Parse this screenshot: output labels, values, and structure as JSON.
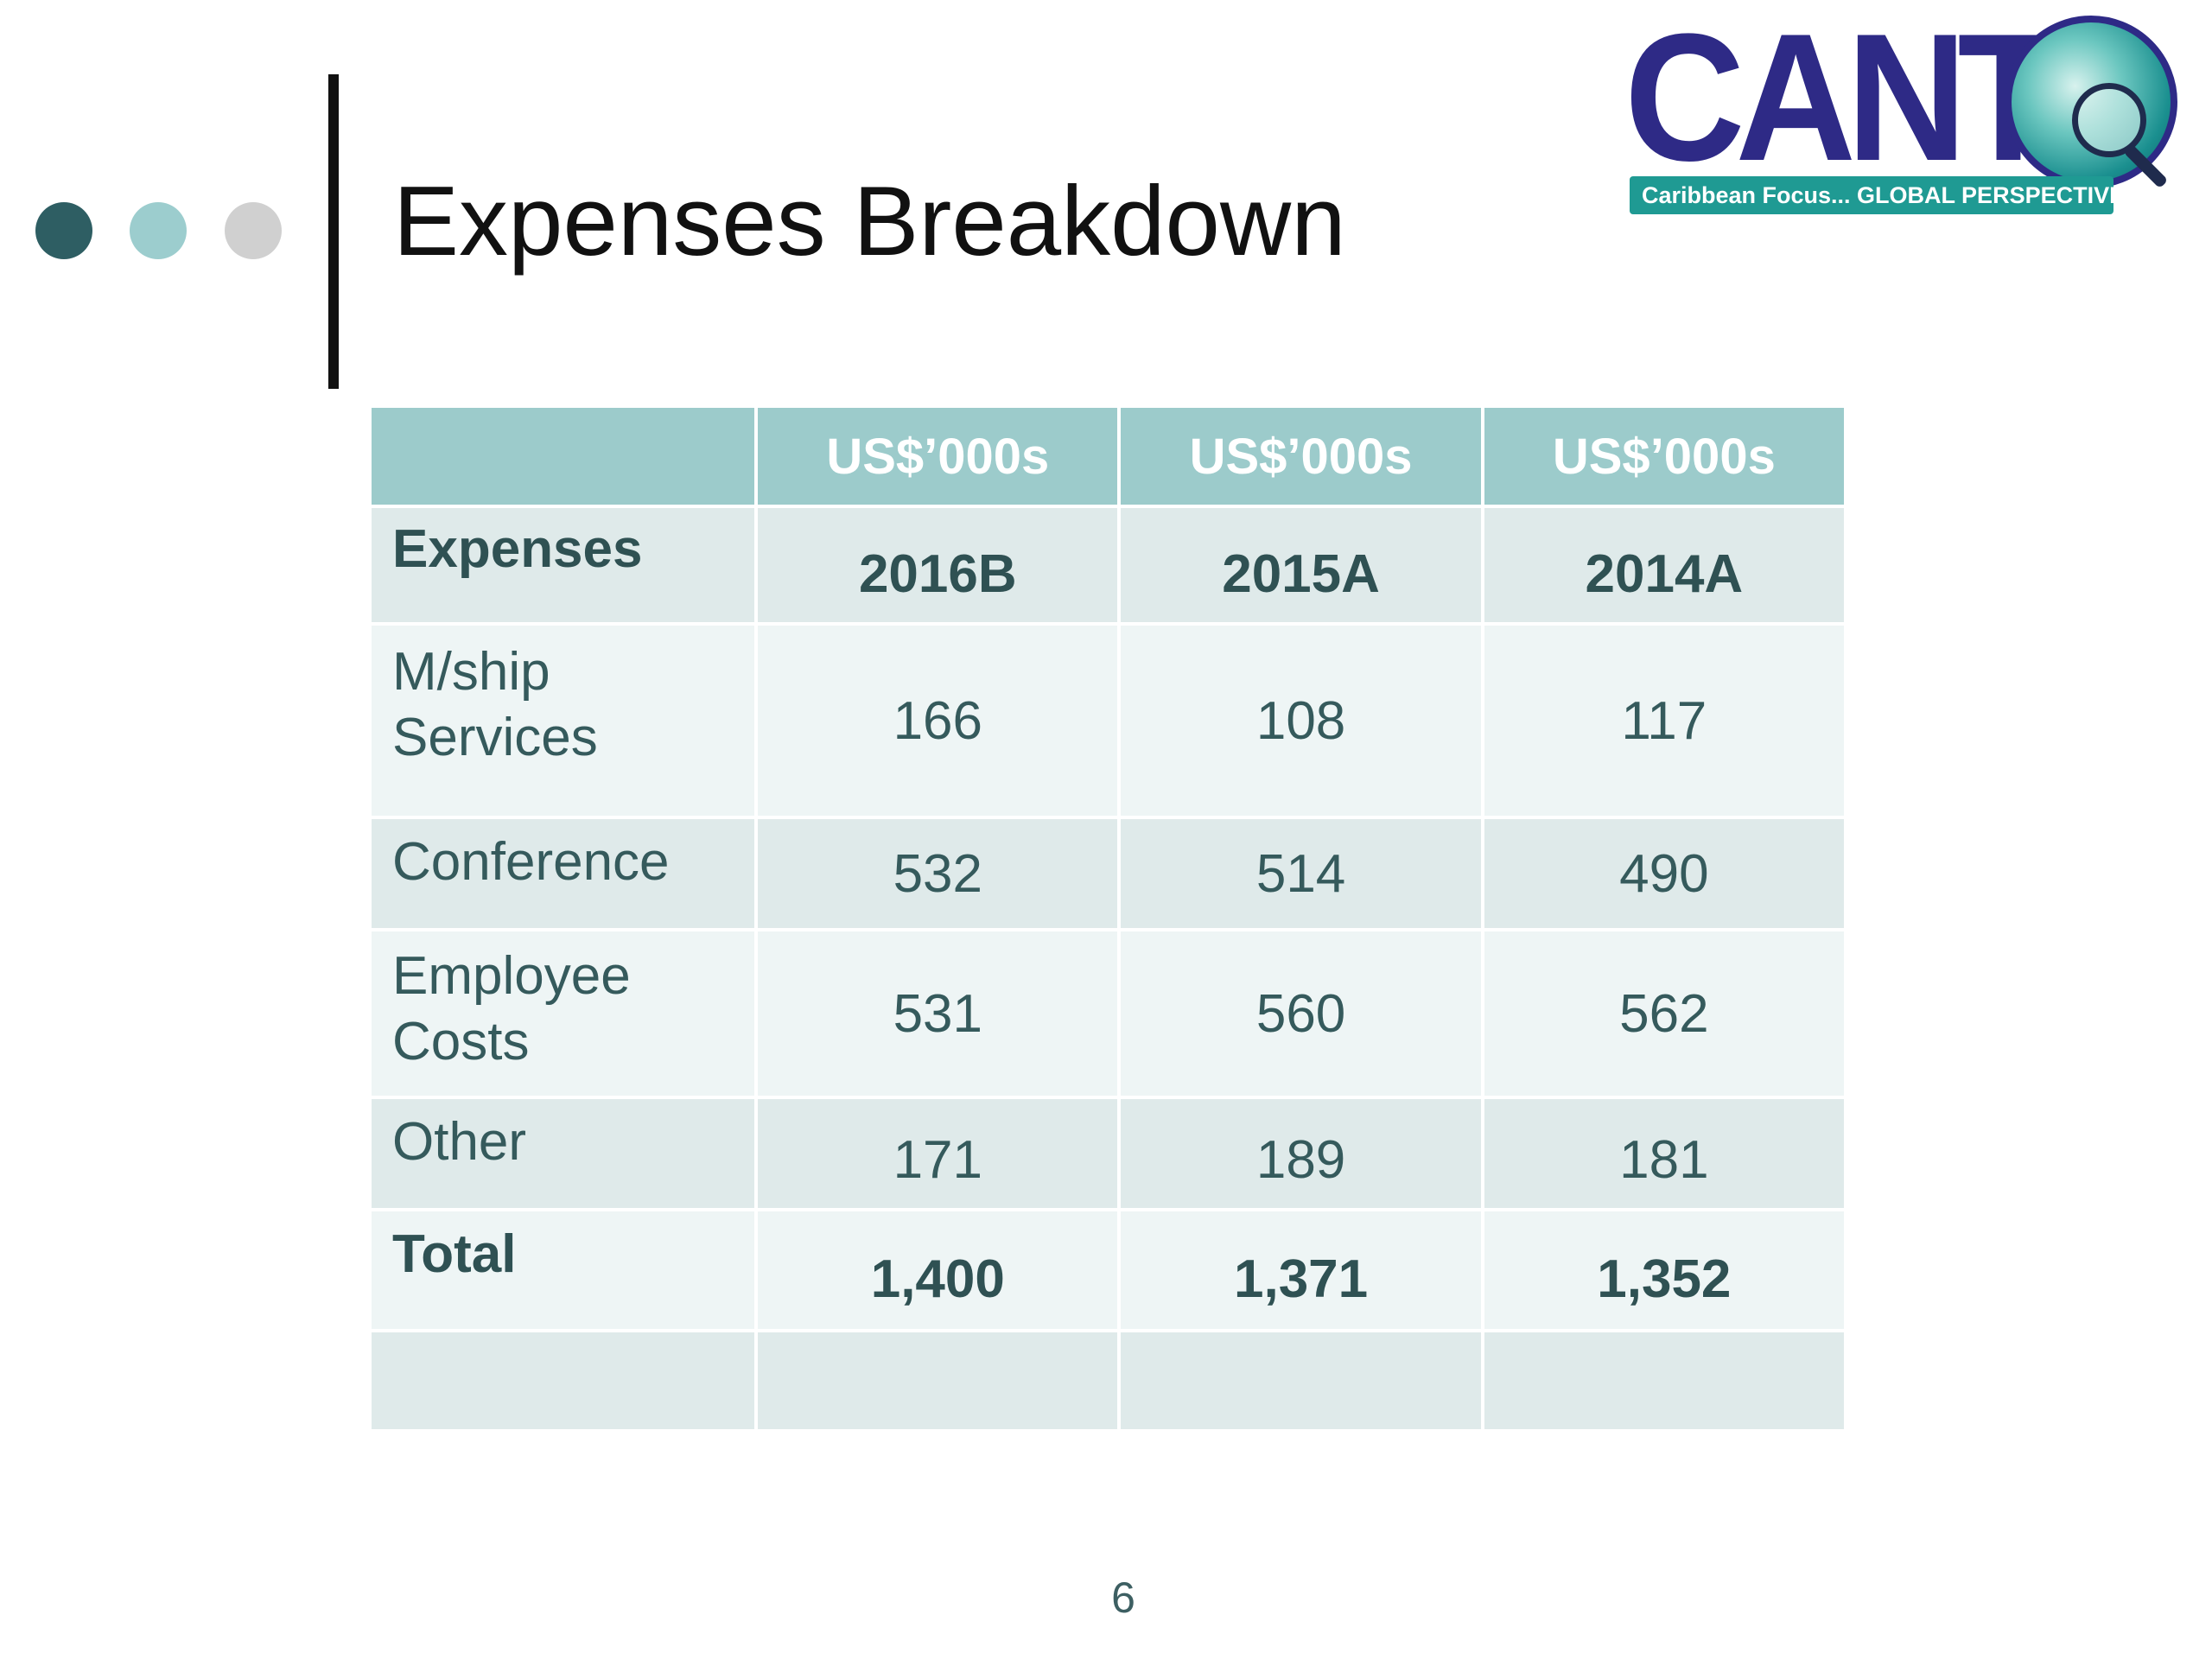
{
  "slide": {
    "title": "Expenses Breakdown",
    "page_number": "6"
  },
  "logo": {
    "wordmark": "CANTO",
    "tagline": "Caribbean Focus... GLOBAL PERSPECTIVE"
  },
  "table": {
    "unit_header": [
      "",
      "US$’000s",
      "US$’000s",
      "US$’000s"
    ],
    "columns": [
      "Expenses",
      "2016B",
      "2015A",
      "2014A"
    ],
    "rows": [
      {
        "label_line1": "M/ship",
        "label_line2": "Services",
        "values": [
          "166",
          "108",
          "117"
        ]
      },
      {
        "label_line1": "Conference",
        "label_line2": "",
        "values": [
          "532",
          "514",
          "490"
        ]
      },
      {
        "label_line1": "Employee",
        "label_line2": "Costs",
        "values": [
          "531",
          "560",
          "562"
        ]
      },
      {
        "label_line1": "Other",
        "label_line2": "",
        "values": [
          "171",
          "189",
          "181"
        ]
      }
    ],
    "total": {
      "label": "Total",
      "values": [
        "1,400",
        "1,371",
        "1,352"
      ]
    }
  },
  "colors": {
    "dot_dark": "#2e5e63",
    "dot_light": "#9ccdce",
    "dot_grey": "#d0d0d0",
    "header_fill": "#9ccbcb",
    "row_alt_fill": "#dfeaea",
    "row_fill": "#eef5f5",
    "logo_navy": "#2e2a86",
    "logo_teal": "#1f9a93"
  }
}
